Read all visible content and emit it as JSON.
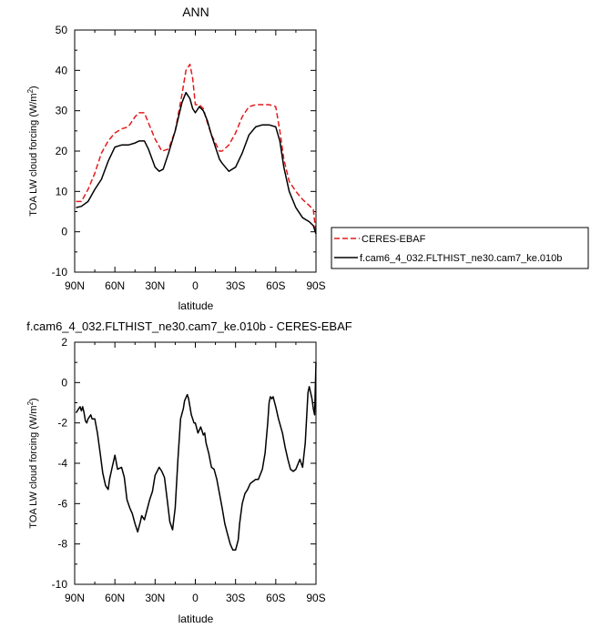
{
  "chart_data": [
    {
      "type": "line",
      "title": "ANN",
      "xlabel": "latitude",
      "ylabel": "TOA LW cloud forcing (W/m",
      "ylabel_sup": "2",
      "ylabel_close": ")",
      "xlim": [
        90,
        -90
      ],
      "ylim": [
        -10,
        50
      ],
      "xticks": [
        90,
        60,
        30,
        0,
        -30,
        -60,
        -90
      ],
      "xtick_labels": [
        "90N",
        "60N",
        "30N",
        "0",
        "30S",
        "60S",
        "90S"
      ],
      "yticks": [
        -10,
        0,
        10,
        20,
        30,
        40,
        50
      ],
      "ytick_labels": [
        "-10",
        "0",
        "10",
        "20",
        "30",
        "40",
        "50"
      ],
      "legend_placement": "right",
      "series": [
        {
          "name": "CERES-EBAF",
          "color": "#e41a1c",
          "dash": "dashed",
          "x": [
            89,
            85,
            80,
            75,
            70,
            65,
            60,
            55,
            50,
            45,
            42,
            38,
            35,
            30,
            25,
            20,
            15,
            10,
            7,
            4,
            2,
            0,
            -3,
            -6,
            -9,
            -12,
            -15,
            -18,
            -20,
            -25,
            -30,
            -35,
            -40,
            -45,
            -50,
            -55,
            -60,
            -63,
            -66,
            -70,
            -75,
            -80,
            -85,
            -88,
            -90
          ],
          "y": [
            7.5,
            7.5,
            10.5,
            14.5,
            19.5,
            22.5,
            24.5,
            25.5,
            26,
            28.5,
            29.5,
            29.5,
            27,
            23,
            20,
            20.5,
            25,
            34,
            40,
            41.5,
            38,
            31.5,
            31.5,
            30.5,
            27,
            24,
            22,
            20,
            20,
            21.5,
            24.5,
            28.5,
            31,
            31.5,
            31.5,
            31.5,
            31,
            25,
            18,
            12.5,
            10,
            8,
            6.5,
            5.5,
            -0.5
          ]
        },
        {
          "name": "f.cam6_4_032.FLTHIST_ne30.cam7_ke.010b",
          "color": "#000000",
          "dash": "solid",
          "x": [
            89,
            85,
            80,
            75,
            70,
            65,
            60,
            55,
            50,
            45,
            42,
            38,
            35,
            30,
            27,
            24,
            20,
            15,
            10,
            7,
            4,
            2,
            0,
            -3,
            -6,
            -9,
            -12,
            -15,
            -18,
            -20,
            -25,
            -30,
            -35,
            -40,
            -45,
            -50,
            -55,
            -60,
            -63,
            -66,
            -70,
            -75,
            -80,
            -85,
            -88,
            -90
          ],
          "y": [
            6,
            6.3,
            7.5,
            10.5,
            13,
            17.5,
            21,
            21.5,
            21.5,
            22,
            22.5,
            22.5,
            20.5,
            16,
            15,
            15.5,
            19.5,
            25,
            32,
            34.5,
            33,
            30.5,
            29.5,
            31,
            30,
            27.5,
            24,
            21,
            18,
            17,
            15,
            16,
            19.5,
            24,
            26,
            26.5,
            26.5,
            26,
            22.5,
            16,
            10,
            6,
            3.5,
            2.5,
            1.5,
            -0.5
          ]
        }
      ]
    },
    {
      "type": "line",
      "title": "f.cam6_4_032.FLTHIST_ne30.cam7_ke.010b - CERES-EBAF",
      "xlabel": "latitude",
      "ylabel": "TOA LW cloud forcing (W/m",
      "ylabel_sup": "2",
      "ylabel_close": ")",
      "xlim": [
        90,
        -90
      ],
      "ylim": [
        -10,
        2
      ],
      "xticks": [
        90,
        60,
        30,
        0,
        -30,
        -60,
        -90
      ],
      "xtick_labels": [
        "90N",
        "60N",
        "30N",
        "0",
        "30S",
        "60S",
        "90S"
      ],
      "yticks": [
        -10,
        -8,
        -6,
        -4,
        -2,
        0,
        2
      ],
      "ytick_labels": [
        "-10",
        "-8",
        "-6",
        "-4",
        "-2",
        "0",
        "2"
      ],
      "series": [
        {
          "color": "#000000",
          "dash": "solid",
          "x": [
            89,
            87,
            86,
            85,
            84,
            83,
            82,
            81,
            80,
            78,
            77,
            75,
            73,
            71,
            69,
            67,
            65,
            64,
            62,
            60,
            58,
            55,
            53,
            51,
            49,
            47,
            45,
            43,
            41,
            40,
            38,
            36,
            34,
            32,
            30,
            27,
            25,
            23,
            21,
            19,
            17,
            15,
            13,
            11,
            9,
            8,
            6,
            5,
            4,
            3,
            2,
            1,
            0,
            -2,
            -4,
            -5,
            -6,
            -7,
            -8,
            -10,
            -12,
            -14,
            -16,
            -18,
            -20,
            -22,
            -24,
            -26,
            -28,
            -30,
            -32,
            -33,
            -35,
            -37,
            -39,
            -41,
            -43,
            -45,
            -47,
            -50,
            -52,
            -54,
            -55,
            -56,
            -57,
            -58,
            -60,
            -62,
            -65,
            -67,
            -69,
            -71,
            -73,
            -75,
            -78,
            -80,
            -82,
            -84,
            -85,
            -86,
            -87,
            -88,
            -89,
            -90
          ],
          "y": [
            -1.5,
            -1.3,
            -1.2,
            -1.4,
            -1.2,
            -1.5,
            -1.9,
            -2,
            -1.8,
            -1.6,
            -1.8,
            -1.8,
            -2.5,
            -3.5,
            -4.5,
            -5.1,
            -5.3,
            -4.8,
            -4.2,
            -3.6,
            -4.3,
            -4.2,
            -4.7,
            -5.8,
            -6.2,
            -6.5,
            -7.0,
            -7.4,
            -6.9,
            -6.6,
            -6.8,
            -6.3,
            -5.8,
            -5.4,
            -4.6,
            -4.2,
            -4.4,
            -4.7,
            -5.8,
            -6.9,
            -7.3,
            -6.2,
            -3.8,
            -1.8,
            -1.3,
            -0.9,
            -0.6,
            -0.8,
            -1.2,
            -1.6,
            -1.8,
            -2.0,
            -2.0,
            -2.5,
            -2.2,
            -2.4,
            -2.6,
            -2.5,
            -3.0,
            -3.5,
            -4.2,
            -4.3,
            -4.8,
            -5.5,
            -6.2,
            -7.0,
            -7.5,
            -8.0,
            -8.3,
            -8.3,
            -7.8,
            -7.0,
            -6.0,
            -5.5,
            -5.3,
            -5.0,
            -4.9,
            -4.8,
            -4.8,
            -4.3,
            -3.5,
            -2.0,
            -1.0,
            -0.7,
            -0.8,
            -0.7,
            -1.2,
            -1.8,
            -2.5,
            -3.2,
            -3.8,
            -4.3,
            -4.4,
            -4.3,
            -3.8,
            -4.2,
            -3.0,
            -0.5,
            -0.2,
            -0.5,
            -0.8,
            -1.3,
            -1.6,
            1.0
          ]
        }
      ]
    }
  ]
}
